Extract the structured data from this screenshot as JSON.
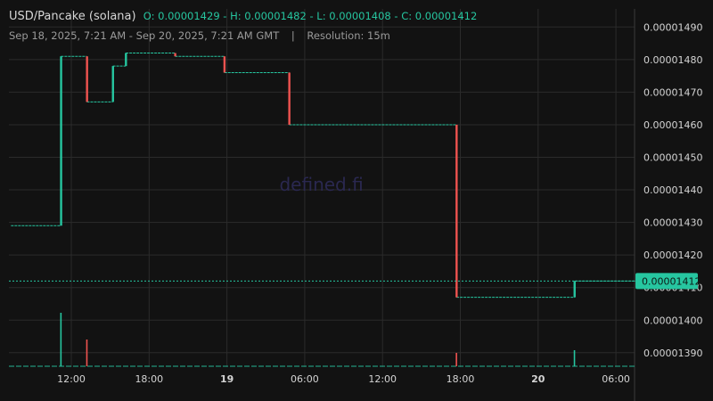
{
  "header": {
    "pair": "USD/Pancake (solana)",
    "open_label": "O:",
    "open": "0.00001429",
    "high_label": "H:",
    "high": "0.00001482",
    "low_label": "L:",
    "low": "0.00001408",
    "close_label": "C:",
    "close": "0.00001412",
    "date_range": "Sep 18, 2025, 7:21 AM - Sep 20, 2025, 7:21 AM GMT",
    "divider": "|",
    "resolution": "Resolution: 15m"
  },
  "watermark": "defined.fi",
  "chart_data": {
    "type": "candlestick",
    "ylim": [
      1.382e-05,
      1.493e-05
    ],
    "y_ticks": [
      "0.00001490",
      "0.00001480",
      "0.00001470",
      "0.00001460",
      "0.00001450",
      "0.00001440",
      "0.00001430",
      "0.00001420",
      "0.00001410",
      "0.00001400",
      "0.00001390"
    ],
    "y_tick_values": [
      1.49e-05,
      1.48e-05,
      1.47e-05,
      1.46e-05,
      1.45e-05,
      1.44e-05,
      1.43e-05,
      1.42e-05,
      1.41e-05,
      1.4e-05,
      1.39e-05
    ],
    "x_ticks": [
      {
        "label": "12:00",
        "hour": 12,
        "bold": false
      },
      {
        "label": "18:00",
        "hour": 18,
        "bold": false
      },
      {
        "label": "19",
        "hour": 24,
        "bold": true
      },
      {
        "label": "06:00",
        "hour": 30,
        "bold": false
      },
      {
        "label": "12:00",
        "hour": 36,
        "bold": false
      },
      {
        "label": "18:00",
        "hour": 42,
        "bold": false
      },
      {
        "label": "20",
        "hour": 48,
        "bold": true
      },
      {
        "label": "06:00",
        "hour": 54,
        "bold": false
      }
    ],
    "time_unit": "hours since Sep 18 00:00 GMT",
    "segments": [
      {
        "t0": 7.35,
        "t1": 11.2,
        "price": 1.429e-05
      },
      {
        "t0": 11.2,
        "t1": 13.2,
        "price": 1.481e-05
      },
      {
        "t0": 13.2,
        "t1": 15.2,
        "price": 1.467e-05
      },
      {
        "t0": 15.2,
        "t1": 16.2,
        "price": 1.478e-05
      },
      {
        "t0": 16.2,
        "t1": 20.0,
        "price": 1.482e-05
      },
      {
        "t0": 20.0,
        "t1": 23.8,
        "price": 1.481e-05
      },
      {
        "t0": 23.8,
        "t1": 28.8,
        "price": 1.476e-05
      },
      {
        "t0": 28.8,
        "t1": 41.7,
        "price": 1.46e-05
      },
      {
        "t0": 41.7,
        "t1": 50.8,
        "price": 1.407e-05
      },
      {
        "t0": 50.8,
        "t1": 56.5,
        "price": 1.412e-05
      }
    ],
    "volume_spikes": [
      {
        "t": 11.2,
        "vol": 1.0,
        "dir": "up"
      },
      {
        "t": 13.2,
        "vol": 0.5,
        "dir": "down"
      },
      {
        "t": 41.7,
        "vol": 0.25,
        "dir": "down"
      },
      {
        "t": 50.8,
        "vol": 0.3,
        "dir": "up"
      }
    ],
    "last_price": "0.00001412",
    "last_price_value": 1.412e-05,
    "colors": {
      "up": "#26c6a0",
      "down": "#ef5350",
      "grid": "#2b2b2b",
      "axis_text": "#d4d4d4",
      "background": "#121212",
      "watermark": "#2a2850",
      "last_price_bg": "#26c6a0"
    }
  }
}
